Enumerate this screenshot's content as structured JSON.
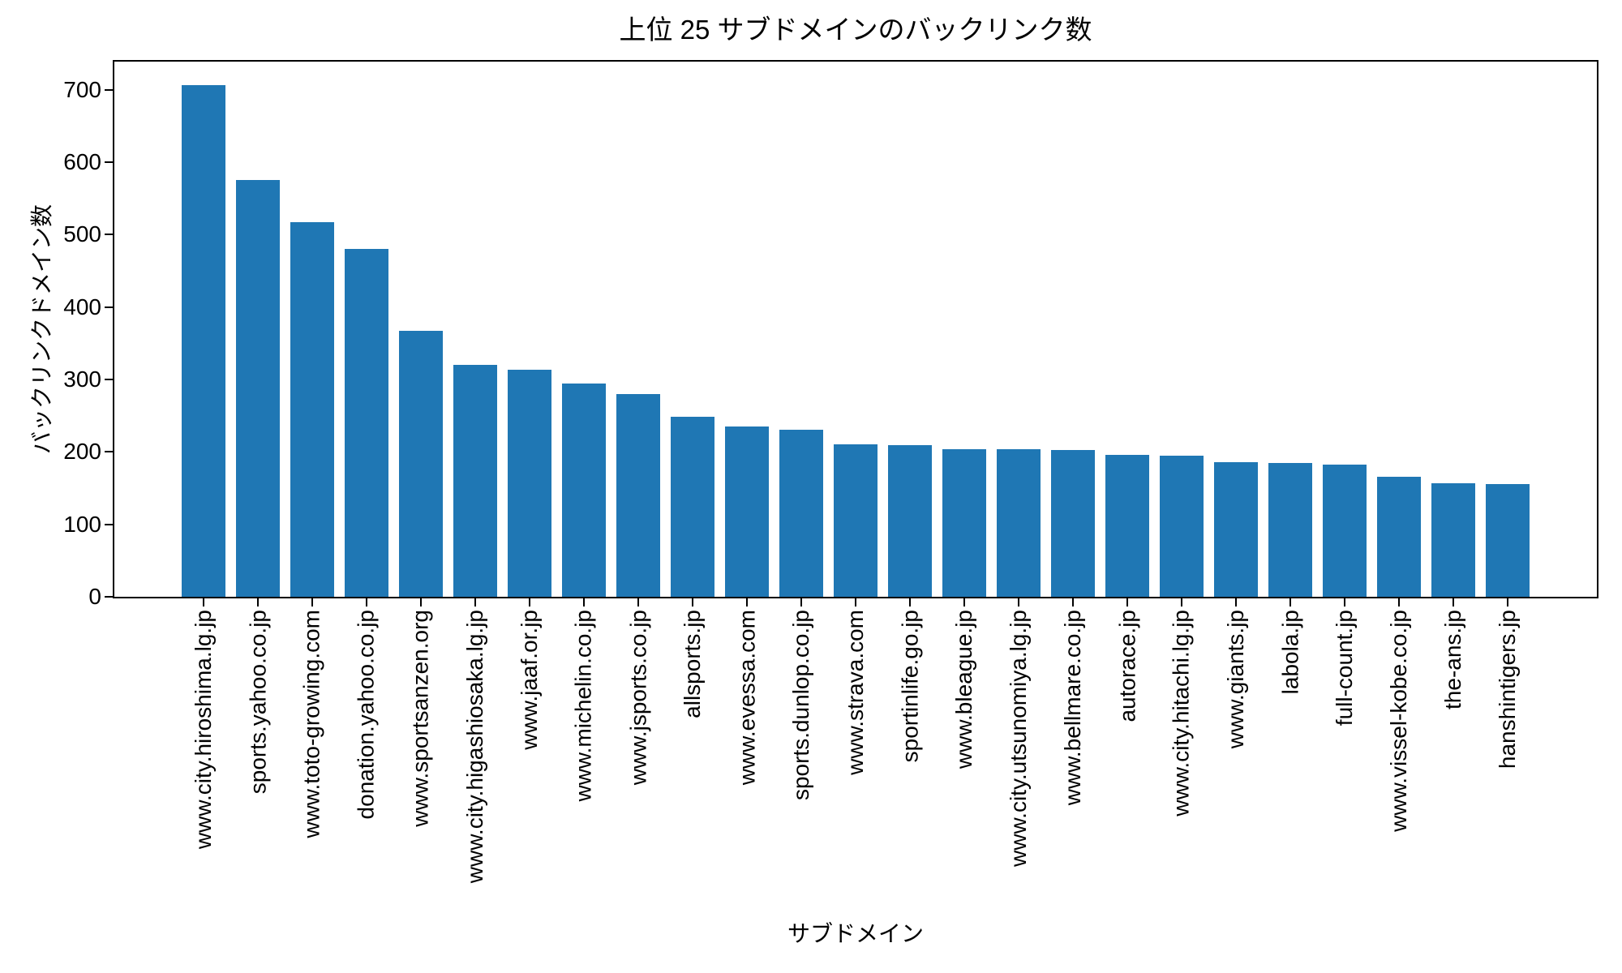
{
  "chart_data": {
    "type": "bar",
    "title": "上位 25 サブドメインのバックリンク数",
    "xlabel": "サブドメイン",
    "ylabel": "バックリンクドメイン数",
    "categories": [
      "www.city.hiroshima.lg.jp",
      "sports.yahoo.co.jp",
      "www.toto-growing.com",
      "donation.yahoo.co.jp",
      "www.sportsanzen.org",
      "www.city.higashiosaka.lg.jp",
      "www.jaaf.or.jp",
      "www.michelin.co.jp",
      "www.jsports.co.jp",
      "allsports.jp",
      "www.evessa.com",
      "sports.dunlop.co.jp",
      "www.strava.com",
      "sportinlife.go.jp",
      "www.bleague.jp",
      "www.city.utsunomiya.lg.jp",
      "www.bellmare.co.jp",
      "autorace.jp",
      "www.city.hitachi.lg.jp",
      "www.giants.jp",
      "labola.jp",
      "full-count.jp",
      "www.vissel-kobe.co.jp",
      "the-ans.jp",
      "hanshintigers.jp"
    ],
    "values": [
      707,
      575,
      517,
      480,
      367,
      320,
      313,
      295,
      280,
      249,
      235,
      231,
      210,
      209,
      204,
      204,
      203,
      196,
      195,
      186,
      185,
      182,
      166,
      157,
      156
    ],
    "yticks": [
      0,
      100,
      200,
      300,
      400,
      500,
      600,
      700
    ],
    "ylim": [
      0,
      739
    ],
    "bar_color": "#1f77b4",
    "text_color": "#000000",
    "spine_color": "#000000",
    "grid": false,
    "legend": null,
    "x_tick_rotation_deg": 90
  }
}
